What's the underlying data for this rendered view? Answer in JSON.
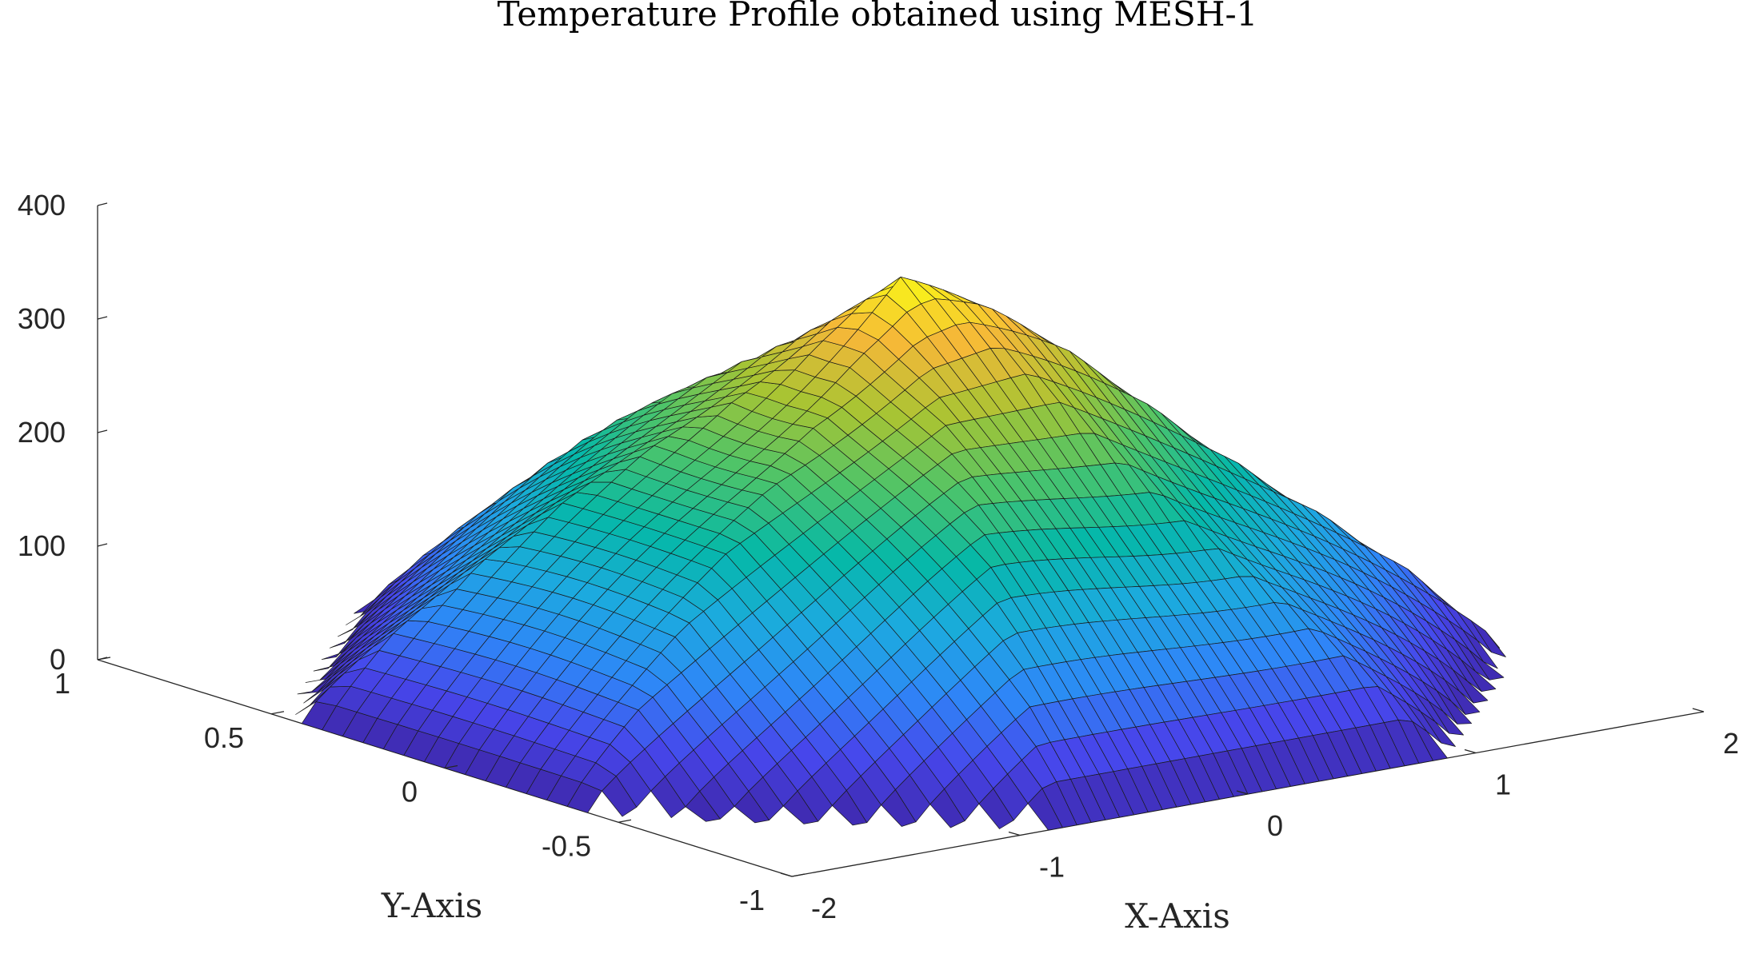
{
  "chart_data": {
    "type": "surface3d",
    "title": "Temperature Profile obtained using MESH-1",
    "xlabel": "X-Axis",
    "ylabel": "Y-Axis",
    "zlabel": "",
    "xlim": [
      -2,
      2
    ],
    "ylim": [
      -1,
      1
    ],
    "zlim": [
      0,
      400
    ],
    "xticks": [
      "-2",
      "-1",
      "0",
      "1",
      "2"
    ],
    "yticks": [
      "-1",
      "-0.5",
      "0",
      "0.5",
      "1"
    ],
    "zticks": [
      "0",
      "100",
      "200",
      "300",
      "400"
    ],
    "peak_value": 360,
    "colormap": "parula",
    "colormap_stops": [
      "#3e26a8",
      "#4746eb",
      "#2e87f7",
      "#1caadf",
      "#05b8a8",
      "#4cc46a",
      "#a8c433",
      "#f5b838",
      "#f9fb15"
    ],
    "edge_color": "#1a1a1a",
    "grid": false
  }
}
